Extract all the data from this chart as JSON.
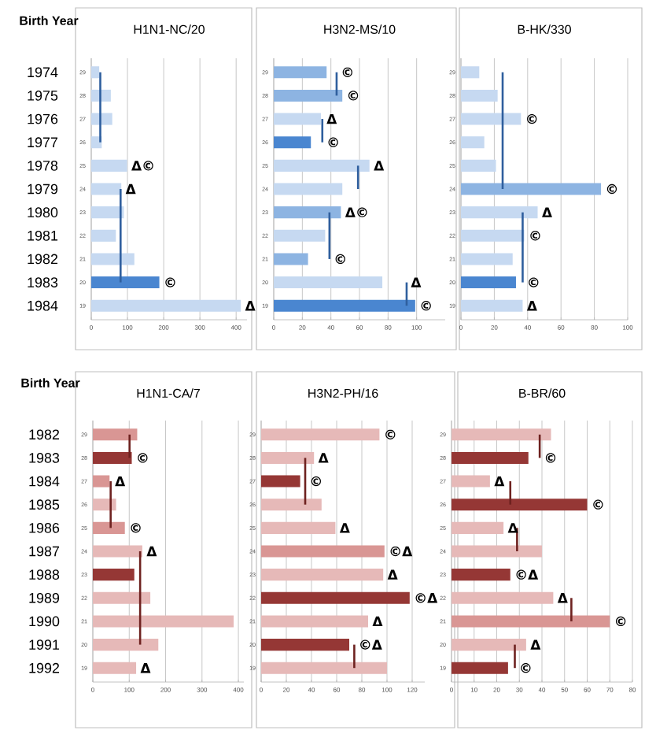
{
  "chart_data": [
    {
      "type": "bar",
      "orientation": "horizontal",
      "title": "H1N1-NC/20",
      "categories": [
        "29",
        "28",
        "27",
        "26",
        "25",
        "24",
        "23",
        "22",
        "21",
        "20",
        "19"
      ],
      "xlim": [
        0,
        430
      ],
      "xticks": [
        0,
        100,
        200,
        300,
        400
      ],
      "grid": "x",
      "series": [
        {
          "type": "bar",
          "colors": [
            "#c6d9f1",
            "#c6d9f1",
            "#c6d9f1",
            "#c6d9f1",
            "#c6d9f1",
            "#c6d9f1",
            "#c6d9f1",
            "#c6d9f1",
            "#c6d9f1",
            "#4a86d0",
            "#c6d9f1"
          ],
          "values": [
            22,
            54,
            58,
            29,
            99,
            83,
            90,
            68,
            119,
            188,
            413
          ]
        },
        {
          "type": "line",
          "color": "#2f5f9e",
          "values": [
            25,
            25,
            25,
            25,
            null,
            null,
            null,
            null,
            null,
            null,
            null
          ]
        },
        {
          "type": "line",
          "color": "#2f5f9e",
          "values": [
            null,
            null,
            null,
            null,
            null,
            81,
            81,
            81,
            81,
            81,
            null
          ]
        }
      ],
      "annotations": [
        "Birth Year",
        "1974",
        "1975",
        "1976",
        "1977",
        "1978",
        "1979",
        "1980",
        "1981",
        "1982",
        "1983",
        "1984",
        {
          "text": "Δ©",
          "x": 99,
          "y": "25"
        },
        {
          "text": "Δ",
          "x": 83,
          "y": "24"
        },
        {
          "text": "©",
          "x": 188,
          "y": "20"
        },
        {
          "text": "Δ",
          "x": 413,
          "y": "19"
        }
      ]
    },
    {
      "type": "bar",
      "orientation": "horizontal",
      "title": "H3N2-MS/10",
      "categories": [
        "29",
        "28",
        "27",
        "26",
        "25",
        "24",
        "23",
        "22",
        "21",
        "20",
        "19"
      ],
      "xlim": [
        0,
        120
      ],
      "xticks": [
        0,
        20,
        40,
        60,
        80,
        100
      ],
      "grid": "x",
      "series": [
        {
          "type": "bar",
          "colors": [
            "#8db4e2",
            "#8db4e2",
            "#c6d9f1",
            "#4a86d0",
            "#c6d9f1",
            "#c6d9f1",
            "#8db4e2",
            "#c6d9f1",
            "#8db4e2",
            "#c6d9f1",
            "#4a86d0"
          ],
          "values": [
            37,
            48,
            33,
            26,
            67,
            48,
            47,
            36,
            24,
            76,
            99
          ]
        },
        {
          "type": "line",
          "color": "#2f5f9e",
          "values": [
            44,
            44,
            null,
            null,
            null,
            null,
            null,
            null,
            null,
            null,
            null
          ]
        },
        {
          "type": "line",
          "color": "#2f5f9e",
          "values": [
            null,
            null,
            34,
            34,
            null,
            null,
            null,
            null,
            null,
            null,
            null
          ]
        },
        {
          "type": "line",
          "color": "#2f5f9e",
          "values": [
            null,
            null,
            null,
            null,
            59,
            59,
            null,
            null,
            null,
            null,
            null
          ]
        },
        {
          "type": "line",
          "color": "#2f5f9e",
          "values": [
            null,
            null,
            null,
            null,
            null,
            null,
            39,
            39,
            39,
            null,
            null
          ]
        },
        {
          "type": "line",
          "color": "#2f5f9e",
          "values": [
            null,
            null,
            null,
            null,
            null,
            null,
            null,
            null,
            null,
            93,
            93
          ]
        }
      ],
      "annotations": [
        {
          "text": "©",
          "x": 44,
          "y": "29"
        },
        {
          "text": "©",
          "x": 48,
          "y": "28"
        },
        {
          "text": "Δ",
          "x": 34,
          "y": "27"
        },
        {
          "text": "©",
          "x": 34,
          "y": "26"
        },
        {
          "text": "Δ",
          "x": 67,
          "y": "25"
        },
        {
          "text": "Δ©",
          "x": 47,
          "y": "23"
        },
        {
          "text": "©",
          "x": 39,
          "y": "21"
        },
        {
          "text": "Δ",
          "x": 93,
          "y": "20"
        },
        {
          "text": "©",
          "x": 99,
          "y": "19"
        }
      ]
    },
    {
      "type": "bar",
      "orientation": "horizontal",
      "title": "B-HK/330",
      "categories": [
        "29",
        "28",
        "27",
        "26",
        "25",
        "24",
        "23",
        "22",
        "21",
        "20",
        "19"
      ],
      "xlim": [
        0,
        100
      ],
      "xticks": [
        0,
        20,
        40,
        60,
        80,
        100
      ],
      "grid": "x",
      "series": [
        {
          "type": "bar",
          "colors": [
            "#c6d9f1",
            "#c6d9f1",
            "#c6d9f1",
            "#c6d9f1",
            "#c6d9f1",
            "#8db4e2",
            "#c6d9f1",
            "#c6d9f1",
            "#c6d9f1",
            "#4a86d0",
            "#c6d9f1"
          ],
          "values": [
            11,
            22,
            36,
            14,
            21,
            84,
            46,
            38,
            31,
            33,
            37
          ]
        },
        {
          "type": "line",
          "color": "#2f5f9e",
          "values": [
            25,
            25,
            25,
            25,
            25,
            25,
            null,
            null,
            null,
            null,
            null
          ]
        },
        {
          "type": "line",
          "color": "#2f5f9e",
          "values": [
            null,
            null,
            null,
            null,
            null,
            null,
            37,
            37,
            37,
            37,
            null
          ]
        }
      ],
      "annotations": [
        {
          "text": "©",
          "x": 36,
          "y": "27"
        },
        {
          "text": "©",
          "x": 84,
          "y": "24"
        },
        {
          "text": "Δ",
          "x": 46,
          "y": "23"
        },
        {
          "text": "©",
          "x": 38,
          "y": "22"
        },
        {
          "text": "©",
          "x": 37,
          "y": "20"
        },
        {
          "text": "Δ",
          "x": 37,
          "y": "19"
        }
      ]
    },
    {
      "type": "bar",
      "orientation": "horizontal",
      "title": "H1N1-CA/7",
      "categories": [
        "29",
        "28",
        "27",
        "26",
        "25",
        "24",
        "23",
        "22",
        "21",
        "20",
        "19"
      ],
      "xlim": [
        0,
        415
      ],
      "xticks": [
        0,
        100,
        200,
        300,
        400
      ],
      "grid": "x",
      "series": [
        {
          "type": "bar",
          "colors": [
            "#d99694",
            "#953735",
            "#d99694",
            "#e6b9b8",
            "#d99694",
            "#e6b9b8",
            "#953735",
            "#e6b9b8",
            "#e6b9b8",
            "#e6b9b8",
            "#e6b9b8"
          ],
          "values": [
            122,
            107,
            46,
            64,
            88,
            136,
            114,
            158,
            387,
            180,
            119
          ]
        },
        {
          "type": "line",
          "color": "#6e2220",
          "values": [
            101,
            101,
            null,
            null,
            null,
            null,
            null,
            null,
            null,
            null,
            null
          ]
        },
        {
          "type": "line",
          "color": "#6e2220",
          "values": [
            null,
            null,
            49,
            49,
            49,
            null,
            null,
            null,
            null,
            null,
            null
          ]
        },
        {
          "type": "line",
          "color": "#6e2220",
          "values": [
            null,
            null,
            null,
            null,
            null,
            130,
            130,
            130,
            130,
            130,
            null
          ]
        }
      ],
      "annotations": [
        "Birth Year",
        "1982",
        "1983",
        "1984",
        "1985",
        "1986",
        "1987",
        "1988",
        "1989",
        "1990",
        "1991",
        "1992",
        {
          "text": "©",
          "x": 107,
          "y": "28"
        },
        {
          "text": "Δ",
          "x": 49,
          "y": "27"
        },
        {
          "text": "©",
          "x": 88,
          "y": "25"
        },
        {
          "text": "Δ",
          "x": 136,
          "y": "24"
        },
        {
          "text": "Δ",
          "x": 119,
          "y": "19"
        }
      ]
    },
    {
      "type": "bar",
      "orientation": "horizontal",
      "title": "H3N2-PH/16",
      "categories": [
        "29",
        "28",
        "27",
        "26",
        "25",
        "24",
        "23",
        "22",
        "21",
        "20",
        "19"
      ],
      "xlim": [
        0,
        130
      ],
      "xticks": [
        0,
        20,
        40,
        60,
        80,
        100,
        120
      ],
      "grid": "x",
      "series": [
        {
          "type": "bar",
          "colors": [
            "#e6b9b8",
            "#e6b9b8",
            "#953735",
            "#e6b9b8",
            "#e6b9b8",
            "#d99694",
            "#e6b9b8",
            "#953735",
            "#e6b9b8",
            "#953735",
            "#e6b9b8"
          ],
          "values": [
            94,
            42,
            31,
            48,
            59,
            98,
            97,
            118,
            85,
            70,
            100
          ]
        },
        {
          "type": "line",
          "color": "#6e2220",
          "values": [
            null,
            35,
            35,
            35,
            null,
            null,
            null,
            null,
            null,
            null,
            null
          ]
        },
        {
          "type": "line",
          "color": "#6e2220",
          "values": [
            null,
            null,
            null,
            null,
            null,
            null,
            null,
            null,
            null,
            74,
            74
          ]
        }
      ],
      "annotations": [
        {
          "text": "©",
          "x": 94,
          "y": "29"
        },
        {
          "text": "Δ",
          "x": 42,
          "y": "28"
        },
        {
          "text": "©",
          "x": 35,
          "y": "27"
        },
        {
          "text": "Δ",
          "x": 59,
          "y": "25"
        },
        {
          "text": "©Δ",
          "x": 98,
          "y": "24"
        },
        {
          "text": "Δ",
          "x": 97,
          "y": "23"
        },
        {
          "text": "©Δ",
          "x": 118,
          "y": "22"
        },
        {
          "text": "Δ",
          "x": 85,
          "y": "21"
        },
        {
          "text": "©Δ",
          "x": 74,
          "y": "20"
        }
      ]
    },
    {
      "type": "bar",
      "orientation": "horizontal",
      "title": "B-BR/60",
      "categories": [
        "29",
        "28",
        "27",
        "26",
        "25",
        "24",
        "23",
        "22",
        "21",
        "20",
        "19"
      ],
      "xlim": [
        0,
        80
      ],
      "xticks": [
        0,
        10,
        20,
        30,
        40,
        50,
        60,
        70,
        80
      ],
      "grid": "x",
      "series": [
        {
          "type": "bar",
          "colors": [
            "#e6b9b8",
            "#953735",
            "#e6b9b8",
            "#953735",
            "#e6b9b8",
            "#e6b9b8",
            "#953735",
            "#e6b9b8",
            "#d99694",
            "#e6b9b8",
            "#953735"
          ],
          "values": [
            44,
            34,
            17,
            60,
            23,
            40,
            26,
            45,
            70,
            33,
            25
          ]
        },
        {
          "type": "line",
          "color": "#6e2220",
          "values": [
            39,
            39,
            null,
            null,
            null,
            null,
            null,
            null,
            null,
            null,
            null
          ]
        },
        {
          "type": "line",
          "color": "#6e2220",
          "values": [
            null,
            null,
            26,
            26,
            null,
            null,
            null,
            null,
            null,
            null,
            null
          ]
        },
        {
          "type": "line",
          "color": "#6e2220",
          "values": [
            null,
            null,
            null,
            null,
            29,
            29,
            null,
            null,
            null,
            null,
            null
          ]
        },
        {
          "type": "line",
          "color": "#6e2220",
          "values": [
            null,
            null,
            null,
            null,
            null,
            null,
            null,
            53,
            53,
            null,
            null
          ]
        },
        {
          "type": "line",
          "color": "#6e2220",
          "values": [
            null,
            null,
            null,
            null,
            null,
            null,
            null,
            null,
            null,
            28,
            28
          ]
        }
      ],
      "annotations": [
        {
          "text": "©",
          "x": 39,
          "y": "28"
        },
        {
          "text": "Δ",
          "x": 17,
          "y": "27"
        },
        {
          "text": "©",
          "x": 60,
          "y": "26"
        },
        {
          "text": "Δ",
          "x": 23,
          "y": "25"
        },
        {
          "text": "©Δ",
          "x": 26,
          "y": "23"
        },
        {
          "text": "Δ",
          "x": 45,
          "y": "22"
        },
        {
          "text": "©",
          "x": 70,
          "y": "21"
        },
        {
          "text": "Δ",
          "x": 33,
          "y": "20"
        },
        {
          "text": "©",
          "x": 28,
          "y": "19"
        }
      ]
    }
  ]
}
